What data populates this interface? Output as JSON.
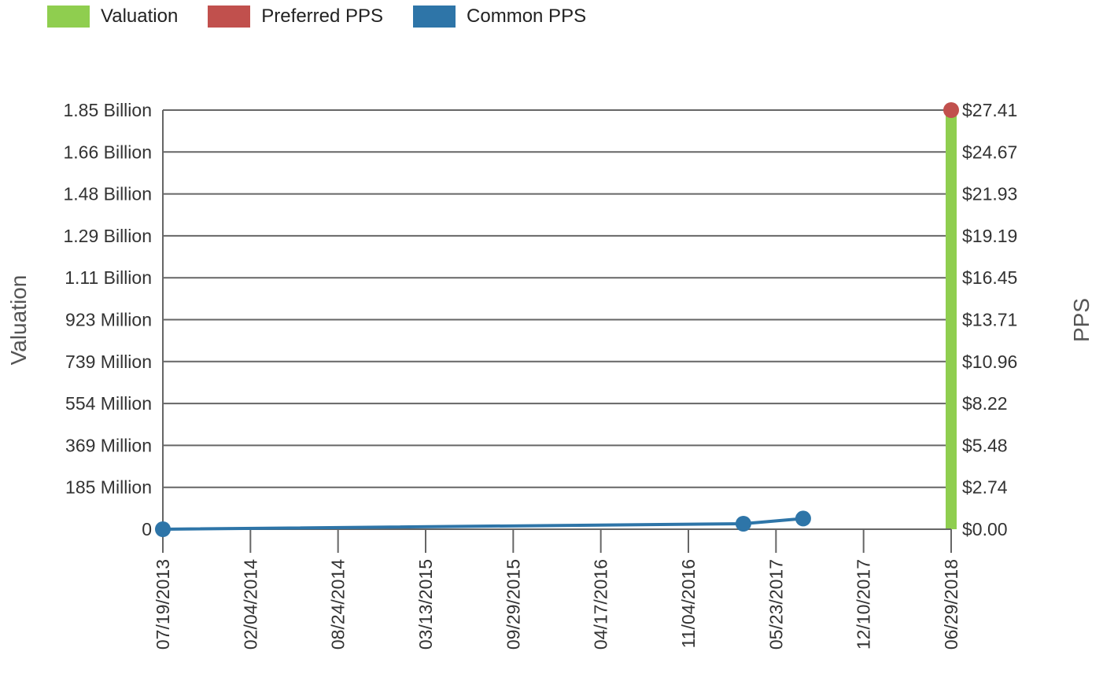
{
  "legend": [
    {
      "label": "Valuation",
      "color": "#8fce4f"
    },
    {
      "label": "Preferred PPS",
      "color": "#c1504d"
    },
    {
      "label": "Common PPS",
      "color": "#2e75a8"
    }
  ],
  "chart_data": {
    "type": "line",
    "title": "",
    "y_left_label": "Valuation",
    "y_right_label": "PPS",
    "x_ticks": [
      "07/19/2013",
      "02/04/2014",
      "08/24/2014",
      "03/13/2015",
      "09/29/2015",
      "04/17/2016",
      "11/04/2016",
      "05/23/2017",
      "12/10/2017",
      "06/29/2018"
    ],
    "x_range": [
      "2013-07-19",
      "2018-06-29"
    ],
    "y_left_ticks": [
      "0",
      "185 Million",
      "369 Million",
      "554 Million",
      "739 Million",
      "923 Million",
      "1.11 Billion",
      "1.29 Billion",
      "1.48 Billion",
      "1.66 Billion",
      "1.85 Billion"
    ],
    "y_left_range": [
      0,
      1850000000
    ],
    "y_right_ticks": [
      "$0.00",
      "$2.74",
      "$5.48",
      "$8.22",
      "$10.96",
      "$13.71",
      "$16.45",
      "$19.19",
      "$21.93",
      "$24.67",
      "$27.41"
    ],
    "y_right_range": [
      0,
      27.41
    ],
    "grid": true,
    "legend_position": "top-left",
    "series": [
      {
        "name": "Valuation",
        "kind": "bar",
        "axis": "left",
        "color": "#8fce4f",
        "points": [
          {
            "x": "2018-06-29",
            "y": 1850000000
          }
        ]
      },
      {
        "name": "Preferred PPS",
        "kind": "point",
        "axis": "right",
        "color": "#c1504d",
        "points": [
          {
            "x": "2018-06-29",
            "y": 27.41
          }
        ]
      },
      {
        "name": "Common PPS",
        "kind": "line",
        "axis": "right",
        "color": "#2e75a8",
        "points": [
          {
            "x": "2013-07-19",
            "y": 0.0
          },
          {
            "x": "2017-03-10",
            "y": 0.36
          },
          {
            "x": "2017-07-25",
            "y": 0.7
          }
        ]
      }
    ]
  }
}
